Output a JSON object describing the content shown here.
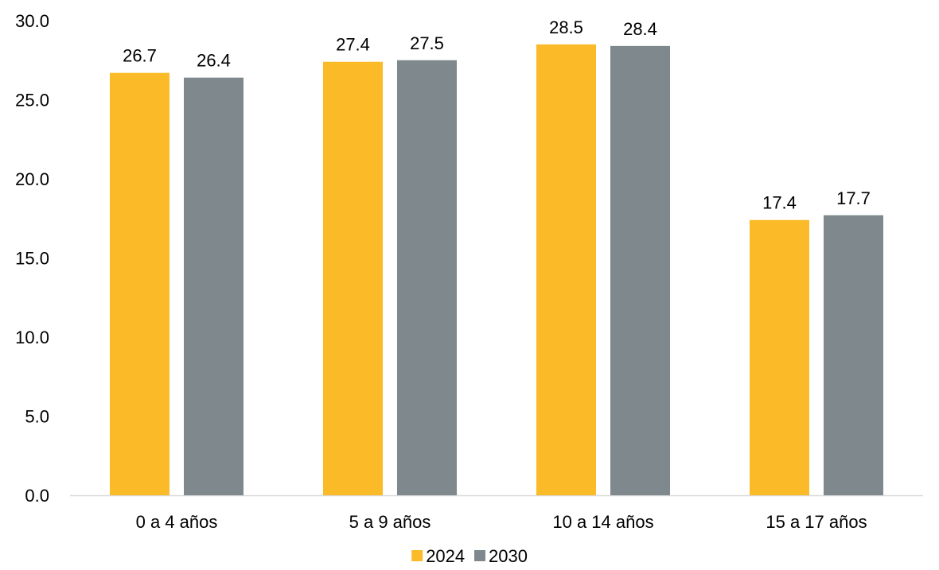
{
  "chart_data": {
    "type": "bar",
    "title": "",
    "xlabel": "",
    "ylabel": "",
    "categories": [
      "0 a 4 años",
      "5 a 9 años",
      "10 a 14 años",
      "15 a 17 años"
    ],
    "series": [
      {
        "name": "2024",
        "color": "#FBBA28",
        "values": [
          26.7,
          27.4,
          28.5,
          17.4
        ]
      },
      {
        "name": "2030",
        "color": "#7E888D",
        "values": [
          26.4,
          27.5,
          28.4,
          17.7
        ]
      }
    ],
    "ylim": [
      0,
      30
    ],
    "yticks": [
      "0.0",
      "5.0",
      "10.0",
      "15.0",
      "20.0",
      "25.0",
      "30.0"
    ],
    "data_label_format": "one-decimal",
    "grid": false,
    "legend": {
      "position": "bottom",
      "entries": [
        "2024",
        "2030"
      ]
    },
    "axis_color": "#D9D9D9"
  }
}
